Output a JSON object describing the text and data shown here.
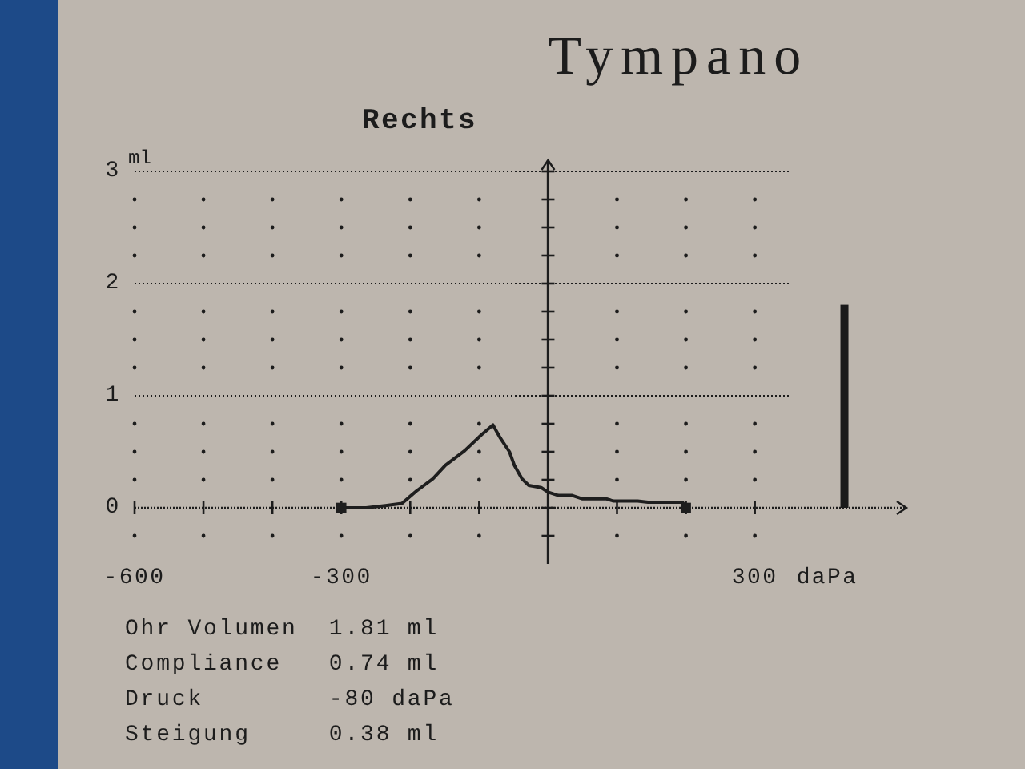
{
  "chart_data": {
    "type": "line",
    "title": "Tympano",
    "subtitle": "Rechts",
    "xlabel": "daPa",
    "ylabel": "ml",
    "xlim": [
      -600,
      520
    ],
    "ylim": [
      -0.5,
      3.1
    ],
    "xticks": [
      -600,
      {
        "value": -500,
        "label": null
      },
      {
        "value": -400,
        "label": null
      },
      -300,
      {
        "value": -200,
        "label": null
      },
      {
        "value": -100,
        "label": null
      },
      {
        "value": 100,
        "label": null
      },
      {
        "value": 200,
        "label": null
      },
      300
    ],
    "yticks": [
      {
        "value": -0.25,
        "label": null
      },
      0,
      {
        "value": 0.25,
        "label": null
      },
      {
        "value": 0.5,
        "label": null
      },
      {
        "value": 0.75,
        "label": null
      },
      1,
      {
        "value": 1.25,
        "label": null
      },
      {
        "value": 1.5,
        "label": null
      },
      {
        "value": 1.75,
        "label": null
      },
      2,
      {
        "value": 2.25,
        "label": null
      },
      {
        "value": 2.5,
        "label": null
      },
      {
        "value": 2.75,
        "label": null
      },
      3
    ],
    "grid": "y",
    "ref_lines": [
      {
        "axis": "y",
        "value": 0,
        "line_style": "dotted"
      }
    ],
    "series": [
      {
        "color": "#1e1e1e",
        "x": [
          200,
          195,
          145,
          130,
          95,
          85,
          50,
          35,
          15,
          0,
          -10,
          -28,
          -38,
          -49,
          -56,
          -69,
          -80,
          -97,
          -121,
          -149,
          -167,
          -191,
          -212,
          -236,
          -264,
          -300
        ],
        "values": [
          0,
          0.05,
          0.05,
          0.06,
          0.06,
          0.08,
          0.08,
          0.11,
          0.11,
          0.14,
          0.18,
          0.2,
          0.26,
          0.38,
          0.5,
          0.62,
          0.74,
          0.65,
          0.51,
          0.38,
          0.26,
          0.15,
          0.04,
          0.02,
          0,
          0
        ]
      },
      {
        "type": "scatter",
        "marker": "square",
        "color": "#1e1e1e",
        "x": [
          200,
          -300
        ],
        "values": [
          0,
          0
        ]
      },
      {
        "type": "bar",
        "color": "#1a1a1a",
        "x": [
          430
        ],
        "values": [
          1.81
        ]
      }
    ],
    "annotations": [
      "Ohr Volumen  1.81 ml",
      "Compliance   0.74 ml",
      "Druck        -80 daPa",
      "Steigung     0.38 ml"
    ]
  }
}
